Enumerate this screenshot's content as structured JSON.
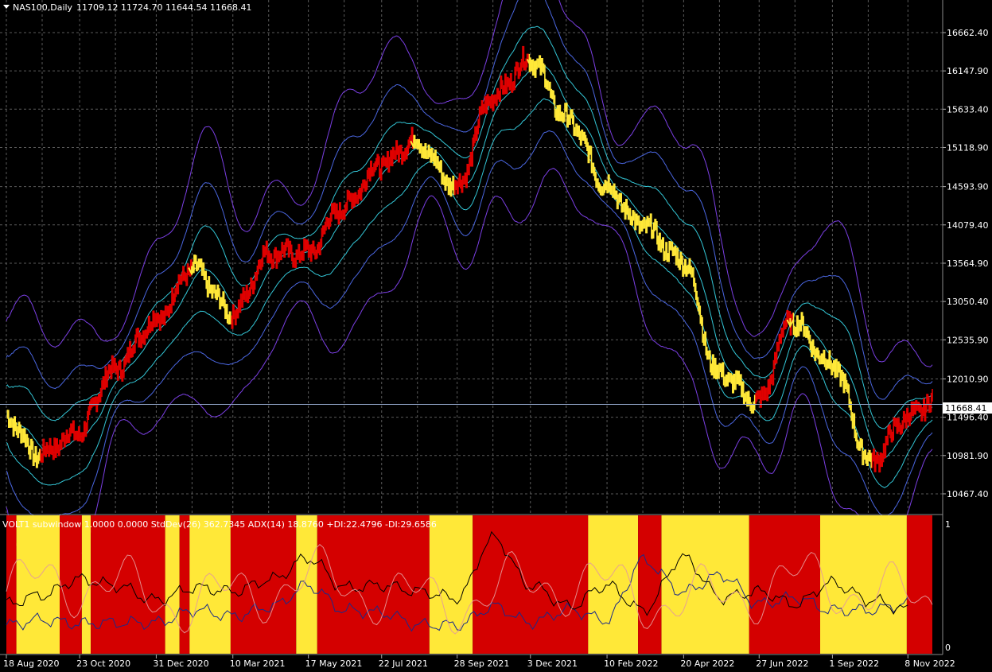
{
  "header": {
    "symbol": "NAS100,Daily",
    "ohlc": "11709.12 11724.70 11644.54 11668.41"
  },
  "subwindow": {
    "caption": "VOLT1 subwindow  1.0000 0.0000  StdDev(26) 362.7345  ADX(14) 18.8760 +DI:22.4796 -DI:29.6586",
    "scale_top": "1",
    "scale_bottom": "0"
  },
  "colors": {
    "background": "#000000",
    "grid": "#5a5a5a",
    "bull": "#e00000",
    "bear": "#ffe838",
    "band_outer": "#7b3fe4",
    "band_mid": "#4a66e0",
    "band_inner": "#33c6d6",
    "current_price_line": "#8fa3c7"
  },
  "chart_data": [
    {
      "type": "line",
      "title": "NAS100,Daily",
      "ylim": [
        10200,
        17100
      ],
      "y_ticks": [
        "16662.40",
        "16147.90",
        "15633.40",
        "15118.90",
        "14593.90",
        "14079.40",
        "13564.90",
        "13050.40",
        "12535.90",
        "12010.90",
        "11496.40",
        "10981.90",
        "10467.40"
      ],
      "current_price": "11668.41",
      "x_ticks": [
        "18 Aug 2020",
        "23 Oct 2020",
        "31 Dec 2020",
        "10 Mar 2021",
        "17 May 2021",
        "22 Jul 2021",
        "28 Sep 2021",
        "3 Dec 2021",
        "10 Feb 2022",
        "20 Apr 2022",
        "27 Jun 2022",
        "1 Sep 2022",
        "8 Nov 2022"
      ],
      "x": [
        "2020-08-18",
        "2020-09-15",
        "2020-10-23",
        "2020-11-20",
        "2020-12-31",
        "2021-02-01",
        "2021-03-10",
        "2021-04-12",
        "2021-05-17",
        "2021-06-15",
        "2021-07-22",
        "2021-08-20",
        "2021-09-28",
        "2021-10-29",
        "2021-12-03",
        "2022-01-05",
        "2022-02-10",
        "2022-03-10",
        "2022-04-20",
        "2022-05-20",
        "2022-06-27",
        "2022-07-25",
        "2022-09-01",
        "2022-10-05",
        "2022-11-08",
        "2022-11-30"
      ],
      "series": [
        {
          "values": [
            11500,
            11000,
            11300,
            12100,
            12800,
            13500,
            12900,
            13700,
            13700,
            14300,
            14900,
            15200,
            14600,
            15800,
            16300,
            15500,
            14600,
            14100,
            13600,
            12100,
            11700,
            12800,
            12200,
            10900,
            11500,
            11700
          ]
        }
      ],
      "bands": "3 envelope pairs (inner cyan, middle blue, outer purple) around a moving average",
      "bar_coloring": "red = uptrend, yellow = downtrend; yellow arrows mark trend flips"
    },
    {
      "type": "line",
      "title": "VOLT1 subwindow",
      "ylim": [
        0,
        1
      ],
      "background_regimes": [
        {
          "from": "2020-08-18",
          "to": "2020-08-27",
          "state": "red"
        },
        {
          "from": "2020-08-27",
          "to": "2020-10-05",
          "state": "yellow"
        },
        {
          "from": "2020-10-05",
          "to": "2020-10-25",
          "state": "red"
        },
        {
          "from": "2020-10-25",
          "to": "2020-11-02",
          "state": "yellow"
        },
        {
          "from": "2020-11-02",
          "to": "2021-01-08",
          "state": "red"
        },
        {
          "from": "2021-01-08",
          "to": "2021-01-21",
          "state": "yellow"
        },
        {
          "from": "2021-01-21",
          "to": "2021-01-30",
          "state": "red"
        },
        {
          "from": "2021-01-30",
          "to": "2021-03-08",
          "state": "yellow"
        },
        {
          "from": "2021-03-08",
          "to": "2021-05-06",
          "state": "red"
        },
        {
          "from": "2021-05-06",
          "to": "2021-05-25",
          "state": "yellow"
        },
        {
          "from": "2021-05-25",
          "to": "2021-09-03",
          "state": "red"
        },
        {
          "from": "2021-09-03",
          "to": "2021-10-12",
          "state": "yellow"
        },
        {
          "from": "2021-10-12",
          "to": "2022-01-24",
          "state": "red"
        },
        {
          "from": "2022-01-24",
          "to": "2022-03-10",
          "state": "yellow"
        },
        {
          "from": "2022-03-10",
          "to": "2022-03-31",
          "state": "red"
        },
        {
          "from": "2022-03-31",
          "to": "2022-06-18",
          "state": "yellow"
        },
        {
          "from": "2022-06-18",
          "to": "2022-08-21",
          "state": "red"
        },
        {
          "from": "2022-08-21",
          "to": "2022-11-07",
          "state": "yellow"
        },
        {
          "from": "2022-11-07",
          "to": "2022-11-30",
          "state": "red"
        }
      ],
      "series": [
        {
          "values": [
            0.18,
            0.22,
            0.19,
            0.2,
            0.2,
            0.3,
            0.25,
            0.33,
            0.5,
            0.3,
            0.28,
            0.18,
            0.18,
            0.33,
            0.2,
            0.3,
            0.22,
            0.7,
            0.45,
            0.58,
            0.35,
            0.4,
            0.3,
            0.3,
            0.35
          ]
        },
        {
          "values": [
            0.35,
            0.42,
            0.55,
            0.5,
            0.38,
            0.48,
            0.45,
            0.55,
            0.72,
            0.48,
            0.5,
            0.45,
            0.4,
            0.88,
            0.5,
            0.33,
            0.5,
            0.3,
            0.72,
            0.4,
            0.45,
            0.35,
            0.52,
            0.38,
            0.3
          ]
        }
      ],
      "x": [
        "2020-08-18",
        "2020-09-20",
        "2020-10-23",
        "2020-11-25",
        "2020-12-31",
        "2021-02-05",
        "2021-03-10",
        "2021-04-15",
        "2021-05-17",
        "2021-06-20",
        "2021-07-22",
        "2021-08-25",
        "2021-09-28",
        "2021-11-01",
        "2021-12-03",
        "2022-01-08",
        "2022-02-10",
        "2022-03-15",
        "2022-04-20",
        "2022-05-25",
        "2022-06-27",
        "2022-07-30",
        "2022-09-01",
        "2022-10-05",
        "2022-11-08"
      ]
    }
  ]
}
